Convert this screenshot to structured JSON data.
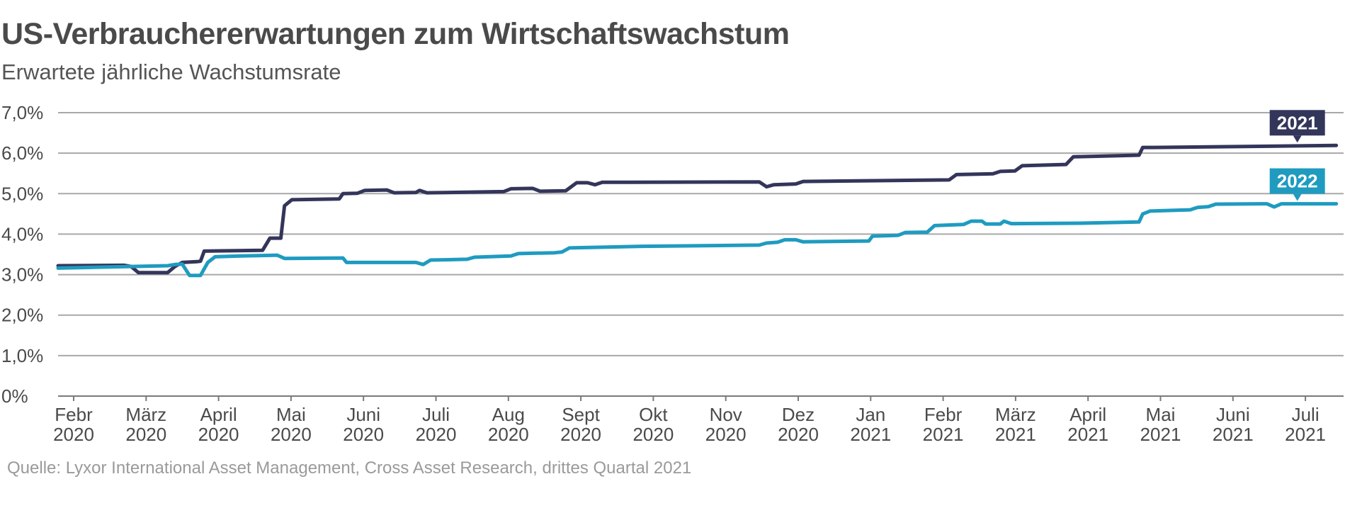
{
  "chart_data": {
    "type": "line",
    "title": "US-Verbrauchererwartungen zum Wirtschaftswachstum",
    "subtitle": "Erwartete jährliche Wachstumsrate",
    "source": "Quelle: Lyxor International Asset Management, Cross Asset Research, drittes Quartal 2021",
    "ylim": [
      0,
      7
    ],
    "yticks": [
      {
        "value": 0,
        "label": "0%"
      },
      {
        "value": 1,
        "label": "1,0%"
      },
      {
        "value": 2,
        "label": "2,0%"
      },
      {
        "value": 3,
        "label": "3,0%"
      },
      {
        "value": 4,
        "label": "4,0%"
      },
      {
        "value": 5,
        "label": "5,0%"
      },
      {
        "value": 6,
        "label": "6,0%"
      },
      {
        "value": 7,
        "label": "7,0%"
      }
    ],
    "xticks": [
      {
        "month": "Febr",
        "year": "2020"
      },
      {
        "month": "März",
        "year": "2020"
      },
      {
        "month": "April",
        "year": "2020"
      },
      {
        "month": "Mai",
        "year": "2020"
      },
      {
        "month": "Juni",
        "year": "2020"
      },
      {
        "month": "Juli",
        "year": "2020"
      },
      {
        "month": "Aug",
        "year": "2020"
      },
      {
        "month": "Sept",
        "year": "2020"
      },
      {
        "month": "Okt",
        "year": "2020"
      },
      {
        "month": "Nov",
        "year": "2020"
      },
      {
        "month": "Dez",
        "year": "2020"
      },
      {
        "month": "Jan",
        "year": "2021"
      },
      {
        "month": "Febr",
        "year": "2021"
      },
      {
        "month": "März",
        "year": "2021"
      },
      {
        "month": "April",
        "year": "2021"
      },
      {
        "month": "Mai",
        "year": "2021"
      },
      {
        "month": "Juni",
        "year": "2021"
      },
      {
        "month": "Juli",
        "year": "2021"
      }
    ],
    "x_unit": "months since Feb 2020",
    "grid": true,
    "series": [
      {
        "name": "2021",
        "color": "#34355a",
        "points": [
          [
            0,
            3.22
          ],
          [
            0.9,
            3.23
          ],
          [
            1.0,
            3.2
          ],
          [
            1.1,
            3.05
          ],
          [
            1.4,
            3.05
          ],
          [
            1.5,
            3.05
          ],
          [
            1.6,
            3.2
          ],
          [
            1.7,
            3.3
          ],
          [
            1.9,
            3.32
          ],
          [
            1.95,
            3.33
          ],
          [
            2.0,
            3.58
          ],
          [
            2.8,
            3.6
          ],
          [
            2.9,
            3.9
          ],
          [
            3.05,
            3.9
          ],
          [
            3.1,
            4.7
          ],
          [
            3.2,
            4.85
          ],
          [
            3.85,
            4.87
          ],
          [
            3.9,
            5.0
          ],
          [
            4.1,
            5.01
          ],
          [
            4.2,
            5.08
          ],
          [
            4.5,
            5.09
          ],
          [
            4.6,
            5.02
          ],
          [
            4.9,
            5.03
          ],
          [
            4.95,
            5.08
          ],
          [
            5.05,
            5.02
          ],
          [
            6.1,
            5.05
          ],
          [
            6.2,
            5.12
          ],
          [
            6.5,
            5.13
          ],
          [
            6.6,
            5.06
          ],
          [
            6.95,
            5.07
          ],
          [
            7.1,
            5.27
          ],
          [
            7.25,
            5.27
          ],
          [
            7.35,
            5.22
          ],
          [
            7.45,
            5.28
          ],
          [
            9.6,
            5.29
          ],
          [
            9.7,
            5.17
          ],
          [
            9.8,
            5.22
          ],
          [
            10.1,
            5.24
          ],
          [
            10.2,
            5.3
          ],
          [
            12.2,
            5.34
          ],
          [
            12.3,
            5.47
          ],
          [
            12.8,
            5.49
          ],
          [
            12.9,
            5.55
          ],
          [
            13.1,
            5.56
          ],
          [
            13.2,
            5.69
          ],
          [
            13.8,
            5.72
          ],
          [
            13.9,
            5.91
          ],
          [
            14.8,
            5.95
          ],
          [
            14.85,
            6.14
          ],
          [
            15.0,
            6.14
          ],
          [
            17.5,
            6.19
          ]
        ],
        "end_label": "2021"
      },
      {
        "name": "2022",
        "color": "#1f9bc0",
        "points": [
          [
            0,
            3.16
          ],
          [
            1.5,
            3.22
          ],
          [
            1.6,
            3.25
          ],
          [
            1.7,
            3.26
          ],
          [
            1.8,
            2.98
          ],
          [
            1.95,
            2.98
          ],
          [
            2.05,
            3.3
          ],
          [
            2.15,
            3.44
          ],
          [
            2.5,
            3.46
          ],
          [
            3.0,
            3.48
          ],
          [
            3.1,
            3.4
          ],
          [
            3.9,
            3.41
          ],
          [
            3.95,
            3.3
          ],
          [
            4.9,
            3.3
          ],
          [
            5.0,
            3.25
          ],
          [
            5.1,
            3.36
          ],
          [
            5.4,
            3.37
          ],
          [
            5.6,
            3.38
          ],
          [
            5.7,
            3.43
          ],
          [
            6.2,
            3.46
          ],
          [
            6.3,
            3.52
          ],
          [
            6.8,
            3.54
          ],
          [
            6.9,
            3.56
          ],
          [
            7.0,
            3.66
          ],
          [
            8.0,
            3.7
          ],
          [
            9.6,
            3.73
          ],
          [
            9.7,
            3.78
          ],
          [
            9.85,
            3.8
          ],
          [
            9.95,
            3.86
          ],
          [
            10.1,
            3.86
          ],
          [
            10.2,
            3.81
          ],
          [
            11.1,
            3.83
          ],
          [
            11.15,
            3.95
          ],
          [
            11.5,
            3.97
          ],
          [
            11.6,
            4.04
          ],
          [
            11.9,
            4.05
          ],
          [
            12.0,
            4.21
          ],
          [
            12.4,
            4.24
          ],
          [
            12.5,
            4.32
          ],
          [
            12.65,
            4.32
          ],
          [
            12.7,
            4.25
          ],
          [
            12.9,
            4.25
          ],
          [
            12.95,
            4.32
          ],
          [
            13.05,
            4.26
          ],
          [
            14.0,
            4.27
          ],
          [
            14.8,
            4.3
          ],
          [
            14.85,
            4.5
          ],
          [
            14.95,
            4.57
          ],
          [
            15.5,
            4.6
          ],
          [
            15.6,
            4.66
          ],
          [
            15.75,
            4.68
          ],
          [
            15.85,
            4.74
          ],
          [
            16.55,
            4.75
          ],
          [
            16.65,
            4.67
          ],
          [
            16.75,
            4.75
          ],
          [
            17.5,
            4.75
          ]
        ],
        "end_label": "2022"
      }
    ]
  }
}
